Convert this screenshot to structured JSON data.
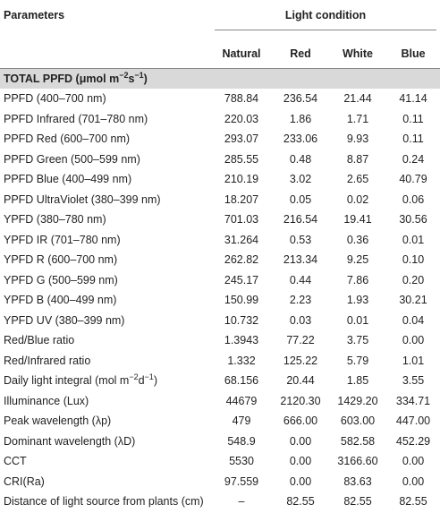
{
  "header": {
    "parameters": "Parameters",
    "light_condition": "Light condition",
    "columns": [
      "Natural",
      "Red",
      "White",
      "Blue"
    ]
  },
  "section": {
    "title": [
      {
        "text": "TOTAL PPFD (μmol m"
      },
      {
        "text": "−2",
        "sup": true
      },
      {
        "text": "s"
      },
      {
        "text": "−1",
        "sup": true
      },
      {
        "text": ")"
      }
    ]
  },
  "rows": [
    {
      "label": "PPFD (400–700 nm)",
      "values": [
        "788.84",
        "236.54",
        "21.44",
        "41.14"
      ]
    },
    {
      "label": "PPFD Infrared (701–780 nm)",
      "values": [
        "220.03",
        "1.86",
        "1.71",
        "0.11"
      ]
    },
    {
      "label": "PPFD Red (600–700 nm)",
      "values": [
        "293.07",
        "233.06",
        "9.93",
        "0.11"
      ]
    },
    {
      "label": "PPFD Green (500–599 nm)",
      "values": [
        "285.55",
        "0.48",
        "8.87",
        "0.24"
      ]
    },
    {
      "label": "PPFD Blue (400–499 nm)",
      "values": [
        "210.19",
        "3.02",
        "2.65",
        "40.79"
      ]
    },
    {
      "label": "PPFD UltraViolet (380–399 nm)",
      "values": [
        "18.207",
        "0.05",
        "0.02",
        "0.06"
      ]
    },
    {
      "label": "YPFD (380–780 nm)",
      "values": [
        "701.03",
        "216.54",
        "19.41",
        "30.56"
      ]
    },
    {
      "label": "YPFD IR (701–780 nm)",
      "values": [
        "31.264",
        "0.53",
        "0.36",
        "0.01"
      ]
    },
    {
      "label": "YPFD R (600–700 nm)",
      "values": [
        "262.82",
        "213.34",
        "9.25",
        "0.10"
      ]
    },
    {
      "label": "YPFD G (500–599 nm)",
      "values": [
        "245.17",
        "0.44",
        "7.86",
        "0.20"
      ]
    },
    {
      "label": "YPFD B (400–499 nm)",
      "values": [
        "150.99",
        "2.23",
        "1.93",
        "30.21"
      ]
    },
    {
      "label": "YPFD UV (380–399 nm)",
      "values": [
        "10.732",
        "0.03",
        "0.01",
        "0.04"
      ]
    },
    {
      "label": "Red/Blue ratio",
      "values": [
        "1.3943",
        "77.22",
        "3.75",
        "0.00"
      ]
    },
    {
      "label": "Red/Infrared ratio",
      "values": [
        "1.332",
        "125.22",
        "5.79",
        "1.01"
      ]
    },
    {
      "label": [
        {
          "text": "Daily light integral (mol m"
        },
        {
          "text": "−2",
          "sup": true
        },
        {
          "text": "d"
        },
        {
          "text": "−1",
          "sup": true
        },
        {
          "text": ")"
        }
      ],
      "values": [
        "68.156",
        "20.44",
        "1.85",
        "3.55"
      ]
    },
    {
      "label": "Illuminance (Lux)",
      "values": [
        "44679",
        "2120.30",
        "1429.20",
        "334.71"
      ]
    },
    {
      "label": "Peak wavelength (λp)",
      "values": [
        "479",
        "666.00",
        "603.00",
        "447.00"
      ]
    },
    {
      "label": "Dominant wavelength (λD)",
      "values": [
        "548.9",
        "0.00",
        "582.58",
        "452.29"
      ]
    },
    {
      "label": "CCT",
      "values": [
        "5530",
        "0.00",
        "3166.60",
        "0.00"
      ]
    },
    {
      "label": "CRI(Ra)",
      "values": [
        "97.559",
        "0.00",
        "83.63",
        "0.00"
      ]
    },
    {
      "label": "Distance of light source from plants (cm)",
      "values": [
        "–",
        "82.55",
        "82.55",
        "82.55"
      ]
    }
  ]
}
